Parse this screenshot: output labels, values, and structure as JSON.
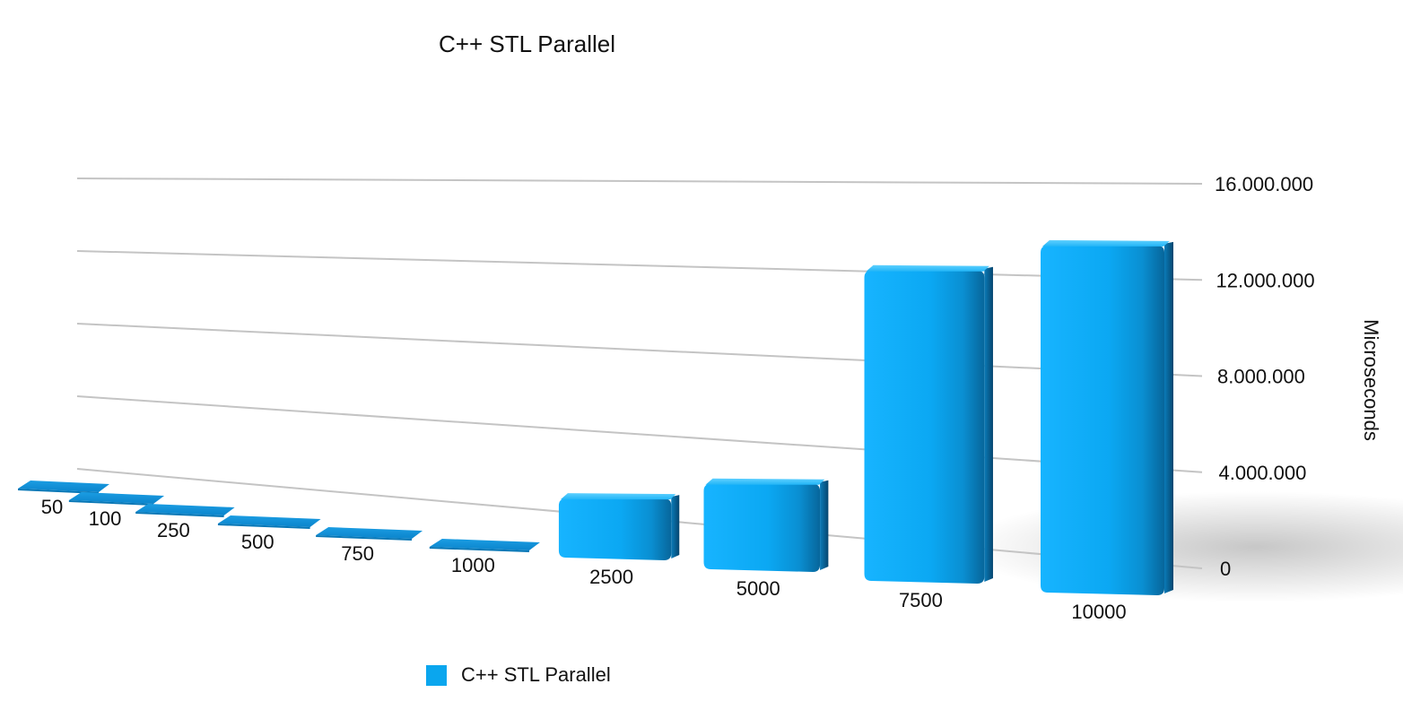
{
  "chart_data": {
    "type": "bar",
    "title": "C++ STL Parallel",
    "xlabel": "",
    "ylabel": "Microseconds",
    "categories": [
      "50",
      "100",
      "250",
      "500",
      "750",
      "1000",
      "2500",
      "5000",
      "7500",
      "10000"
    ],
    "series": [
      {
        "name": "C++ STL Parallel",
        "color": "#0aa6ee",
        "values": [
          5000,
          12000,
          30000,
          60000,
          100000,
          150000,
          3200000,
          4300000,
          14100000,
          15100000
        ]
      }
    ],
    "ylim": [
      0,
      16000000
    ],
    "yticks": [
      "0",
      "4.000.000",
      "8.000.000",
      "12.000.000",
      "16.000.000"
    ],
    "grid": true,
    "legend_position": "bottom-left",
    "style": "3d-perspective"
  }
}
